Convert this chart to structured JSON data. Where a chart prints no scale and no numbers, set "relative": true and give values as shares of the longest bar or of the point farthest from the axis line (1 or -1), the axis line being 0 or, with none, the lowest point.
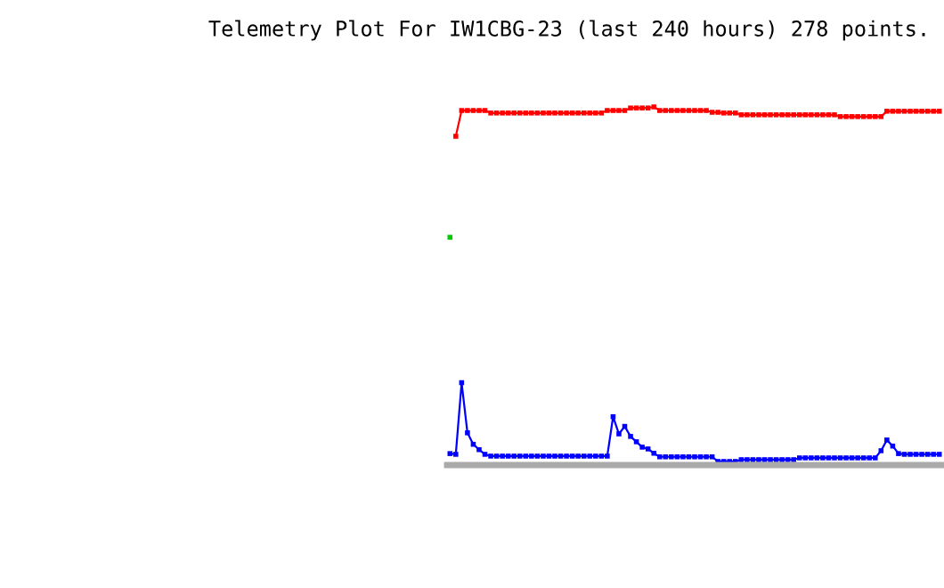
{
  "chart_data": {
    "type": "line",
    "title": "Telemetry Plot For IW1CBG-23 (last 240 hours) 278 points.",
    "relative": true,
    "marker": "square",
    "categories": [
      null,
      null,
      null,
      null,
      null,
      null,
      null,
      null,
      null,
      null,
      null,
      null,
      null,
      null,
      null,
      null,
      null,
      null,
      null,
      null,
      null,
      null,
      null,
      null,
      null,
      null,
      null,
      null,
      null,
      null,
      null,
      null,
      null,
      null,
      null,
      null,
      null,
      null,
      null,
      null,
      null,
      null,
      null,
      null,
      null,
      null,
      null,
      null,
      null,
      null,
      null,
      null,
      null,
      null,
      null,
      null,
      null,
      null,
      null,
      null,
      null,
      null,
      null,
      null,
      null,
      null,
      null,
      null,
      null,
      null,
      null,
      null,
      null,
      null,
      null,
      null,
      null,
      null,
      null,
      null,
      null,
      null,
      null,
      null,
      null
    ],
    "series": [
      {
        "color": "#ff0000",
        "values": [
          null,
          0.918,
          0.99,
          0.99,
          0.99,
          0.99,
          0.99,
          0.983,
          0.983,
          0.983,
          0.983,
          0.983,
          0.983,
          0.983,
          0.983,
          0.983,
          0.983,
          0.983,
          0.983,
          0.983,
          0.983,
          0.983,
          0.983,
          0.983,
          0.983,
          0.983,
          0.983,
          0.99,
          0.99,
          0.99,
          0.99,
          0.997,
          0.997,
          0.997,
          0.997,
          1.0,
          0.99,
          0.99,
          0.99,
          0.99,
          0.99,
          0.99,
          0.99,
          0.99,
          0.99,
          0.985,
          0.985,
          0.983,
          0.983,
          0.983,
          0.978,
          0.978,
          0.978,
          0.978,
          0.978,
          0.978,
          0.978,
          0.978,
          0.978,
          0.978,
          0.978,
          0.978,
          0.978,
          0.978,
          0.978,
          0.978,
          0.978,
          0.973,
          0.973,
          0.973,
          0.973,
          0.973,
          0.973,
          0.973,
          0.973,
          0.988,
          0.988,
          0.988,
          0.988,
          0.988,
          0.988,
          0.988,
          0.988,
          0.988,
          0.988
        ]
      },
      {
        "color": "#0000ff",
        "values": [
          0.032,
          0.03,
          0.23,
          0.09,
          0.058,
          0.043,
          0.03,
          0.025,
          0.025,
          0.025,
          0.025,
          0.025,
          0.025,
          0.025,
          0.025,
          0.025,
          0.025,
          0.025,
          0.025,
          0.025,
          0.025,
          0.025,
          0.025,
          0.025,
          0.025,
          0.025,
          0.025,
          0.025,
          0.135,
          0.087,
          0.108,
          0.08,
          0.065,
          0.05,
          0.045,
          0.033,
          0.023,
          0.023,
          0.023,
          0.023,
          0.023,
          0.023,
          0.023,
          0.023,
          0.023,
          0.023,
          0.01,
          0.01,
          0.01,
          0.01,
          0.015,
          0.015,
          0.015,
          0.015,
          0.015,
          0.015,
          0.015,
          0.015,
          0.015,
          0.015,
          0.02,
          0.02,
          0.02,
          0.02,
          0.02,
          0.02,
          0.02,
          0.02,
          0.02,
          0.02,
          0.02,
          0.02,
          0.02,
          0.02,
          0.04,
          0.07,
          0.053,
          0.032,
          0.03,
          0.03,
          0.03,
          0.03,
          0.03,
          0.03,
          0.03
        ]
      },
      {
        "color": "#00cc00",
        "values": [
          0.636,
          null,
          null,
          null,
          null,
          null,
          null,
          null,
          null,
          null,
          null,
          null,
          null,
          null,
          null,
          null,
          null,
          null,
          null,
          null,
          null,
          null,
          null,
          null,
          null,
          null,
          null,
          null,
          null,
          null,
          null,
          null,
          null,
          null,
          null,
          null,
          null,
          null,
          null,
          null,
          null,
          null,
          null,
          null,
          null,
          null,
          null,
          null,
          null,
          null,
          null,
          null,
          null,
          null,
          null,
          null,
          null,
          null,
          null,
          null,
          null,
          null,
          null,
          null,
          null,
          null,
          null,
          null,
          null,
          null,
          null,
          null,
          null,
          null,
          null,
          null,
          null,
          null,
          null,
          null,
          null,
          null,
          null,
          null,
          null
        ]
      }
    ]
  }
}
